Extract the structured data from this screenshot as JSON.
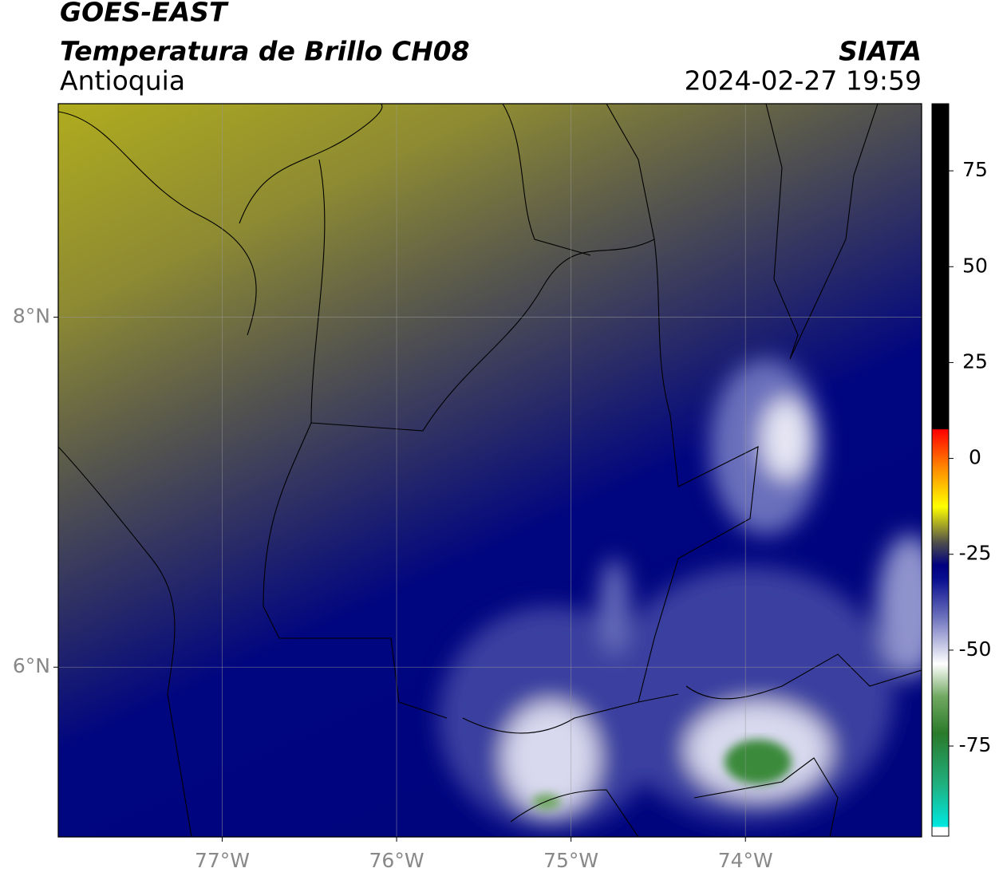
{
  "header": {
    "title": "GOES-EAST",
    "subtitle": "Temperatura de Brillo CH08",
    "region": "Antioquia",
    "source": "SIATA",
    "datetime": "2024-02-27 19:59"
  },
  "map": {
    "xlim": [
      -77.94,
      -72.99
    ],
    "ylim": [
      5.03,
      9.22
    ],
    "xticks": [
      {
        "value": -77,
        "label": "77°W"
      },
      {
        "value": -76,
        "label": "76°W"
      },
      {
        "value": -75,
        "label": "75°W"
      },
      {
        "value": -74,
        "label": "74°W"
      }
    ],
    "yticks": [
      {
        "value": 8,
        "label": "8°N"
      },
      {
        "value": 6,
        "label": "6°N"
      }
    ]
  },
  "colorbar": {
    "lim": [
      -98.5,
      92.5
    ],
    "ticks": [
      75,
      50,
      25,
      0,
      -25,
      -50,
      -75
    ]
  }
}
